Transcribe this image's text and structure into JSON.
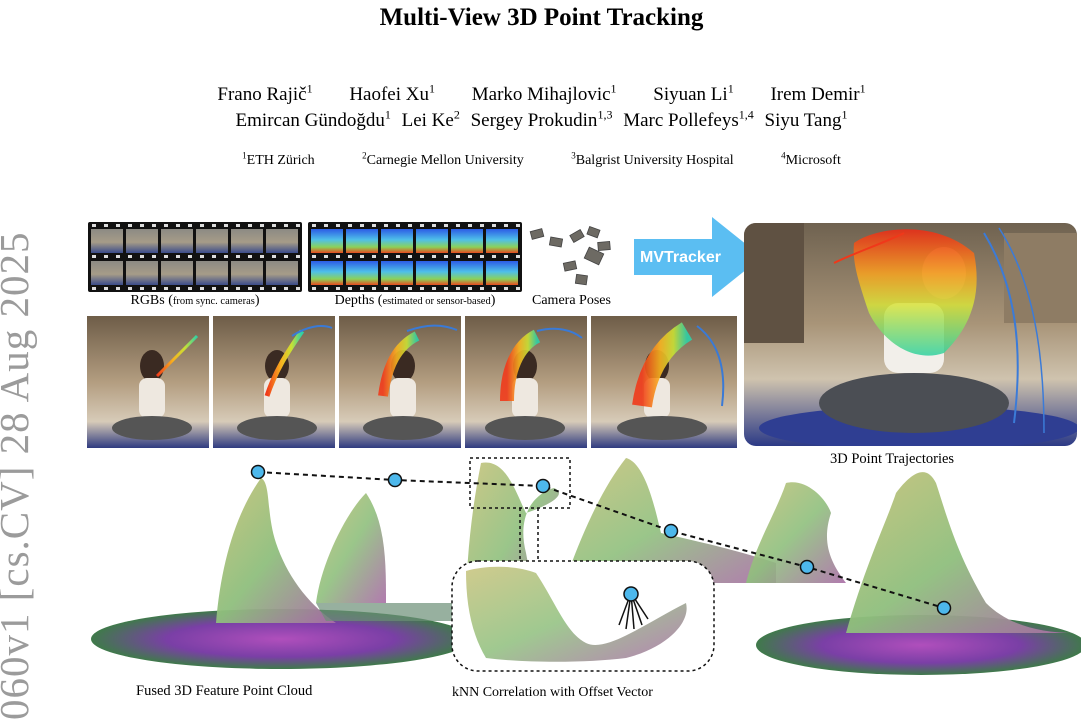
{
  "paper": {
    "title": "Multi-View 3D Point Tracking",
    "authors_line1": [
      {
        "name": "Frano Rajič",
        "aff": "1"
      },
      {
        "name": "Haofei Xu",
        "aff": "1"
      },
      {
        "name": "Marko Mihajlovic",
        "aff": "1"
      },
      {
        "name": "Siyuan Li",
        "aff": "1"
      },
      {
        "name": "Irem Demir",
        "aff": "1"
      }
    ],
    "authors_line2": [
      {
        "name": "Emircan Gündoğdu",
        "aff": "1"
      },
      {
        "name": "Lei Ke",
        "aff": "2"
      },
      {
        "name": "Sergey Prokudin",
        "aff": "1,3"
      },
      {
        "name": "Marc Pollefeys",
        "aff": "1,4"
      },
      {
        "name": "Siyu Tang",
        "aff": "1"
      }
    ],
    "affiliations": [
      {
        "num": "1",
        "name": "ETH Zürich"
      },
      {
        "num": "2",
        "name": "Carnegie Mellon University"
      },
      {
        "num": "3",
        "name": "Balgrist University Hospital"
      },
      {
        "num": "4",
        "name": "Microsoft"
      }
    ],
    "arxiv_stamp": "060v1  [cs.CV]  28 Aug 2025"
  },
  "figure": {
    "rgbs_caption_main": "RGBs (",
    "rgbs_caption_small": "from sync. cameras",
    "rgbs_caption_end": ")",
    "depths_caption_main": "Depths (",
    "depths_caption_small": "estimated or sensor-based",
    "depths_caption_end": ")",
    "poses_caption": "Camera Poses",
    "arrow_label": "MVTracker",
    "trajectories_label": "3D Point Trajectories",
    "pointcloud_label": "Fused 3D Feature Point Cloud",
    "knn_label": "kNN Correlation with Offset Vector",
    "colors": {
      "arrow": "#5bbef2",
      "node": "#4db8ec",
      "film": "#111111"
    }
  }
}
